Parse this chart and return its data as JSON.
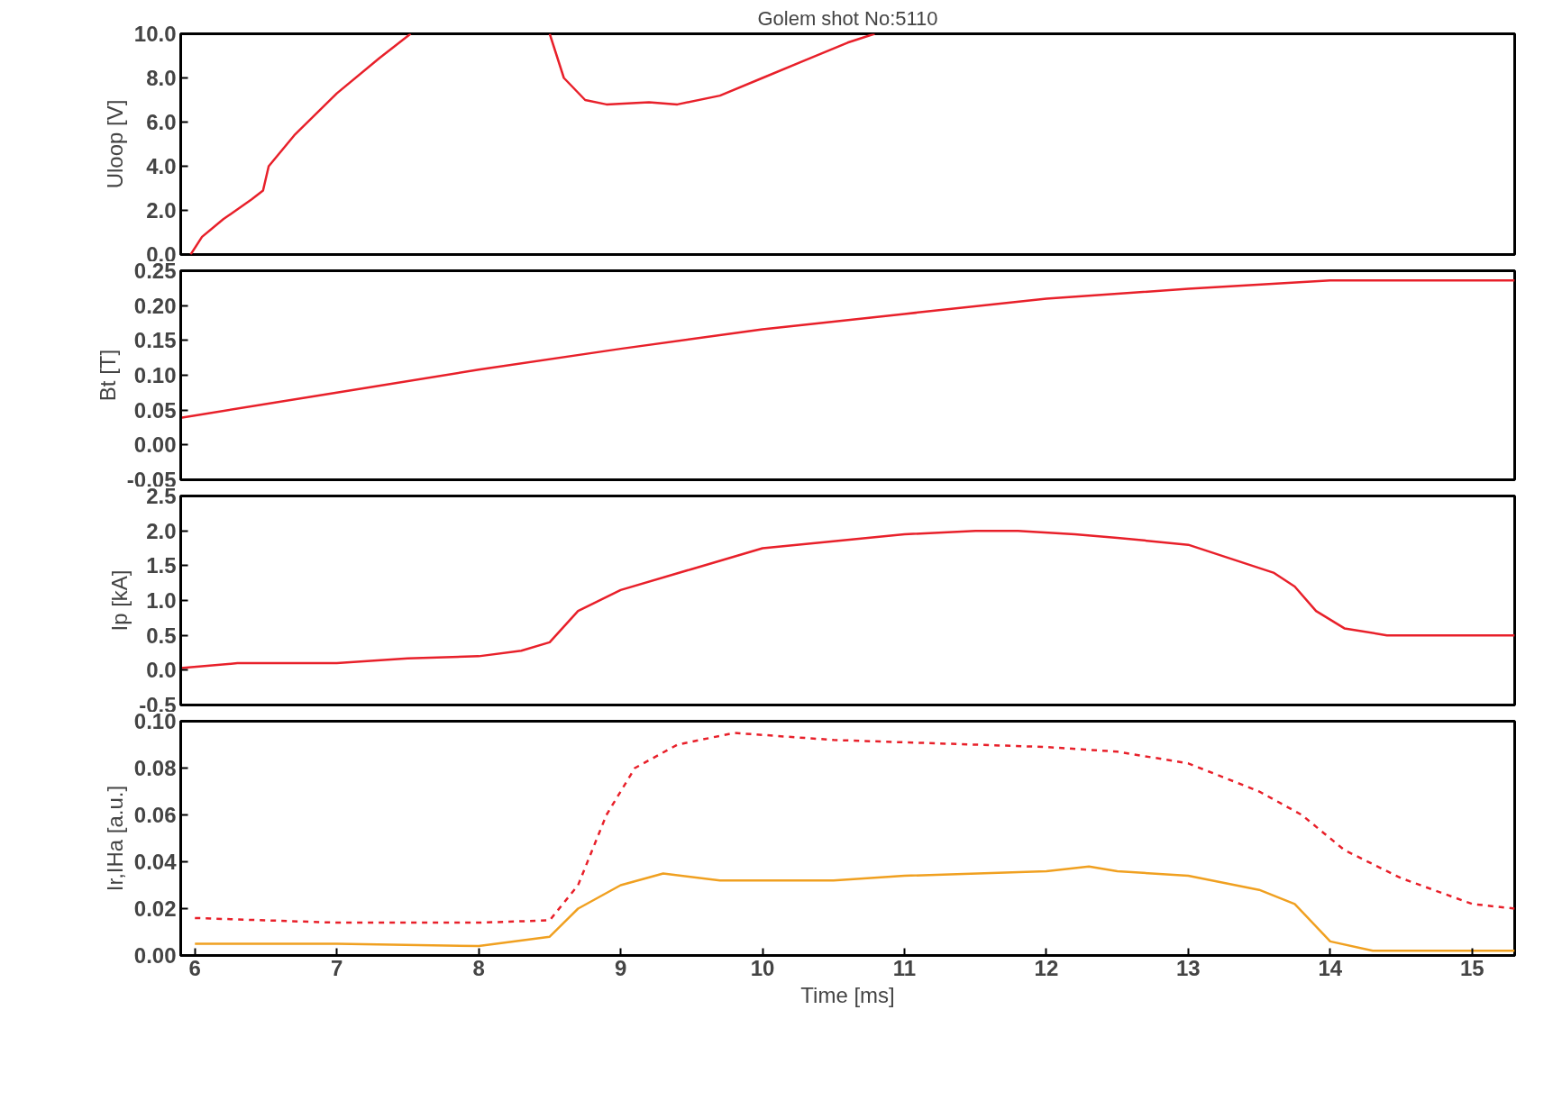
{
  "chart_data": [
    {
      "type": "line",
      "title": "Golem shot No:5110",
      "ylabel": "Uloop [V]",
      "xlim": [
        5.9,
        15.3
      ],
      "ylim": [
        0,
        10
      ],
      "tick_labels": "y",
      "yticks": [
        {
          "value": 0,
          "label": "0.0"
        },
        {
          "value": 2,
          "label": "2.0"
        },
        {
          "value": 4,
          "label": "4.0"
        },
        {
          "value": 6,
          "label": "6.0"
        },
        {
          "value": 8,
          "label": "8.0"
        },
        {
          "value": 10,
          "label": "10.0"
        }
      ],
      "series": [
        {
          "color": "#e8202a",
          "x": [
            5.97,
            6.05,
            6.2,
            6.4,
            6.48,
            6.52,
            6.7,
            7.0,
            7.3,
            7.52,
            8.0,
            8.5,
            8.6,
            8.75,
            8.9,
            9.2,
            9.4,
            9.7,
            10.0,
            10.3,
            10.6,
            10.79
          ],
          "values": [
            0,
            0.8,
            1.6,
            2.5,
            2.9,
            4.0,
            5.4,
            7.3,
            8.9,
            10,
            null,
            10,
            8.0,
            7.0,
            6.8,
            6.9,
            6.8,
            7.2,
            8.0,
            8.8,
            9.6,
            10
          ]
        }
      ]
    },
    {
      "type": "line",
      "ylabel": "Bt [T]",
      "xlim": [
        5.9,
        15.3
      ],
      "ylim": [
        -0.05,
        0.25
      ],
      "tick_labels": "y",
      "yticks": [
        {
          "value": -0.05,
          "label": "-0.05"
        },
        {
          "value": 0,
          "label": "0.00"
        },
        {
          "value": 0.05,
          "label": "0.05"
        },
        {
          "value": 0.1,
          "label": "0.10"
        },
        {
          "value": 0.15,
          "label": "0.15"
        },
        {
          "value": 0.2,
          "label": "0.20"
        },
        {
          "value": 0.25,
          "label": "0.25"
        }
      ],
      "series": [
        {
          "color": "#e8202a",
          "x": [
            5.9,
            7,
            8,
            9,
            10,
            11,
            12,
            13,
            14,
            15.3
          ],
          "values": [
            0.039,
            0.075,
            0.108,
            0.138,
            0.166,
            0.188,
            0.21,
            0.224,
            0.236,
            0.236
          ]
        }
      ]
    },
    {
      "type": "line",
      "ylabel": "Ip [kA]",
      "xlim": [
        5.9,
        15.3
      ],
      "ylim": [
        -0.5,
        2.5
      ],
      "tick_labels": "y",
      "yticks": [
        {
          "value": -0.5,
          "label": "-0.5"
        },
        {
          "value": 0,
          "label": "0.0"
        },
        {
          "value": 0.5,
          "label": "0.5"
        },
        {
          "value": 1,
          "label": "1.0"
        },
        {
          "value": 1.5,
          "label": "1.5"
        },
        {
          "value": 2,
          "label": "2.0"
        },
        {
          "value": 2.5,
          "label": "2.5"
        }
      ],
      "series": [
        {
          "color": "#e8202a",
          "x": [
            5.9,
            6.3,
            7.0,
            7.5,
            8.0,
            8.3,
            8.5,
            8.7,
            9.0,
            9.5,
            10,
            10.5,
            11,
            11.5,
            11.8,
            12.2,
            12.5,
            13,
            13.3,
            13.6,
            13.75,
            13.9,
            14.1,
            14.4,
            15.3
          ],
          "values": [
            0.03,
            0.1,
            0.1,
            0.17,
            0.2,
            0.28,
            0.4,
            0.85,
            1.15,
            1.45,
            1.75,
            1.85,
            1.95,
            2.0,
            2.0,
            1.95,
            1.9,
            1.8,
            1.6,
            1.4,
            1.2,
            0.85,
            0.6,
            0.5,
            0.5
          ]
        }
      ]
    },
    {
      "type": "line",
      "ylabel": "Ir,IHa [a.u.]",
      "xlabel": "Time [ms]",
      "xlim": [
        5.9,
        15.3
      ],
      "ylim": [
        0,
        0.1
      ],
      "xticks": [
        6,
        7,
        8,
        9,
        10,
        11,
        12,
        13,
        14,
        15
      ],
      "yticks": [
        {
          "value": 0,
          "label": "0.00"
        },
        {
          "value": 0.02,
          "label": "0.02"
        },
        {
          "value": 0.04,
          "label": "0.04"
        },
        {
          "value": 0.06,
          "label": "0.06"
        },
        {
          "value": 0.08,
          "label": "0.08"
        },
        {
          "value": 0.1,
          "label": "0.10"
        }
      ],
      "series": [
        {
          "color": "#e8202a",
          "line_style": "dashed",
          "x": [
            6.0,
            7.0,
            8.0,
            8.5,
            8.7,
            8.9,
            9.1,
            9.4,
            9.8,
            10.5,
            11,
            12,
            12.5,
            13,
            13.5,
            13.8,
            14.1,
            14.5,
            15,
            15.3
          ],
          "values": [
            0.016,
            0.014,
            0.014,
            0.015,
            0.03,
            0.06,
            0.08,
            0.09,
            0.095,
            0.092,
            0.091,
            0.089,
            0.087,
            0.082,
            0.07,
            0.06,
            0.045,
            0.033,
            0.022,
            0.02
          ]
        },
        {
          "color": "#f0a020",
          "line_style": "solid",
          "x": [
            6,
            7,
            8,
            8.5,
            8.7,
            9,
            9.3,
            9.7,
            10,
            10.5,
            11,
            12,
            12.3,
            12.5,
            13,
            13.5,
            13.75,
            14,
            14.3,
            15.3
          ],
          "values": [
            0.005,
            0.005,
            0.004,
            0.008,
            0.02,
            0.03,
            0.035,
            0.032,
            0.032,
            0.032,
            0.034,
            0.036,
            0.038,
            0.036,
            0.034,
            0.028,
            0.022,
            0.006,
            0.002,
            0.002
          ]
        }
      ]
    }
  ]
}
